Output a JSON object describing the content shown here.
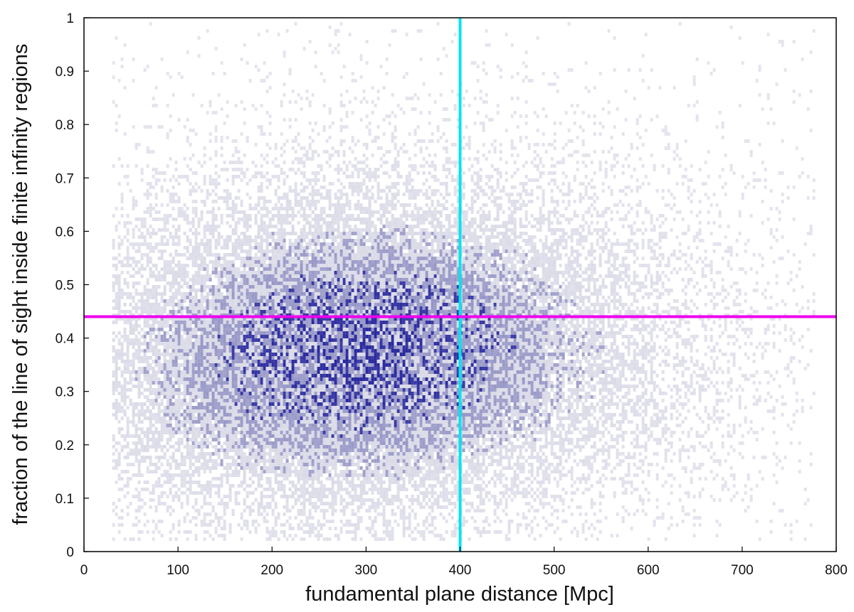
{
  "chart_data": {
    "type": "heatmap",
    "title": "",
    "xlabel": "fundamental plane distance [Mpc]",
    "ylabel": "fraction of the line of sight inside finite infinity regions",
    "xlim": [
      0,
      800
    ],
    "ylim": [
      0,
      1
    ],
    "x_ticks": [
      "0",
      "100",
      "200",
      "300",
      "400",
      "500",
      "600",
      "700",
      "800"
    ],
    "y_ticks": [
      "0",
      "0.1",
      "0.2",
      "0.3",
      "0.4",
      "0.5",
      "0.6",
      "0.7",
      "0.8",
      "0.9",
      "1"
    ],
    "grid": false,
    "legend": "none",
    "density_peak": {
      "x": 290,
      "y": 0.37
    },
    "reference_lines": [
      {
        "orientation": "vertical",
        "x": 400,
        "color": "#00e5ee"
      },
      {
        "orientation": "horizontal",
        "y": 0.44,
        "color": "#ee00ee"
      }
    ],
    "colors": {
      "low": "#cfcfe0",
      "mid": "#8a8ac0",
      "high": "#2a2a9e"
    }
  }
}
